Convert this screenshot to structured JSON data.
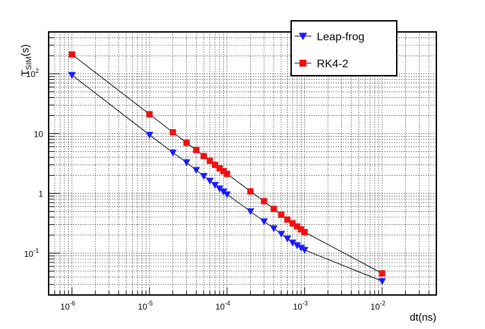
{
  "chart_data": {
    "type": "scatter",
    "xscale": "log",
    "yscale": "log",
    "xlabel": "dt(ns)",
    "ylabel_main": "T",
    "ylabel_sub": "SIM",
    "ylabel_tail": "(s)",
    "xlim": [
      5e-07,
      0.05
    ],
    "ylim": [
      0.02,
      500
    ],
    "grid": true,
    "legend_position": "top-right",
    "x_ticks": [
      {
        "value": 1e-06,
        "base": "10",
        "exp": "-6"
      },
      {
        "value": 1e-05,
        "base": "10",
        "exp": "-5"
      },
      {
        "value": 0.0001,
        "base": "10",
        "exp": "-4"
      },
      {
        "value": 0.001,
        "base": "10",
        "exp": "-3"
      },
      {
        "value": 0.01,
        "base": "10",
        "exp": "-2"
      }
    ],
    "y_ticks": [
      {
        "value": 0.1,
        "base": "10",
        "exp": "-1"
      },
      {
        "value": 1,
        "base": "1",
        "exp": ""
      },
      {
        "value": 10,
        "base": "10",
        "exp": ""
      },
      {
        "value": 100,
        "base": "10",
        "exp": "2"
      }
    ],
    "series": [
      {
        "name": "Leap-frog",
        "color": "#1a1aff",
        "marker": "triangle-down",
        "x": [
          1e-06,
          1e-05,
          2e-05,
          3e-05,
          4e-05,
          5e-05,
          6e-05,
          7e-05,
          8e-05,
          9e-05,
          0.0001,
          0.0002,
          0.0003,
          0.0004,
          0.0005,
          0.0006,
          0.0007,
          0.0008,
          0.0009,
          0.001,
          0.01
        ],
        "y": [
          95,
          9.5,
          4.8,
          3.3,
          2.45,
          1.95,
          1.62,
          1.38,
          1.2,
          1.07,
          0.96,
          0.5,
          0.34,
          0.26,
          0.21,
          0.175,
          0.15,
          0.135,
          0.123,
          0.113,
          0.034
        ]
      },
      {
        "name": "RK4-2",
        "color": "#ee1111",
        "marker": "square",
        "x": [
          1e-06,
          1e-05,
          2e-05,
          3e-05,
          4e-05,
          5e-05,
          6e-05,
          7e-05,
          8e-05,
          9e-05,
          0.0001,
          0.0002,
          0.0003,
          0.0004,
          0.0005,
          0.0006,
          0.0007,
          0.0008,
          0.0009,
          0.001,
          0.01
        ],
        "y": [
          210,
          21,
          10.5,
          7.0,
          5.3,
          4.2,
          3.5,
          3.0,
          2.62,
          2.35,
          2.12,
          1.08,
          0.74,
          0.55,
          0.44,
          0.365,
          0.315,
          0.28,
          0.25,
          0.225,
          0.046
        ]
      }
    ]
  }
}
